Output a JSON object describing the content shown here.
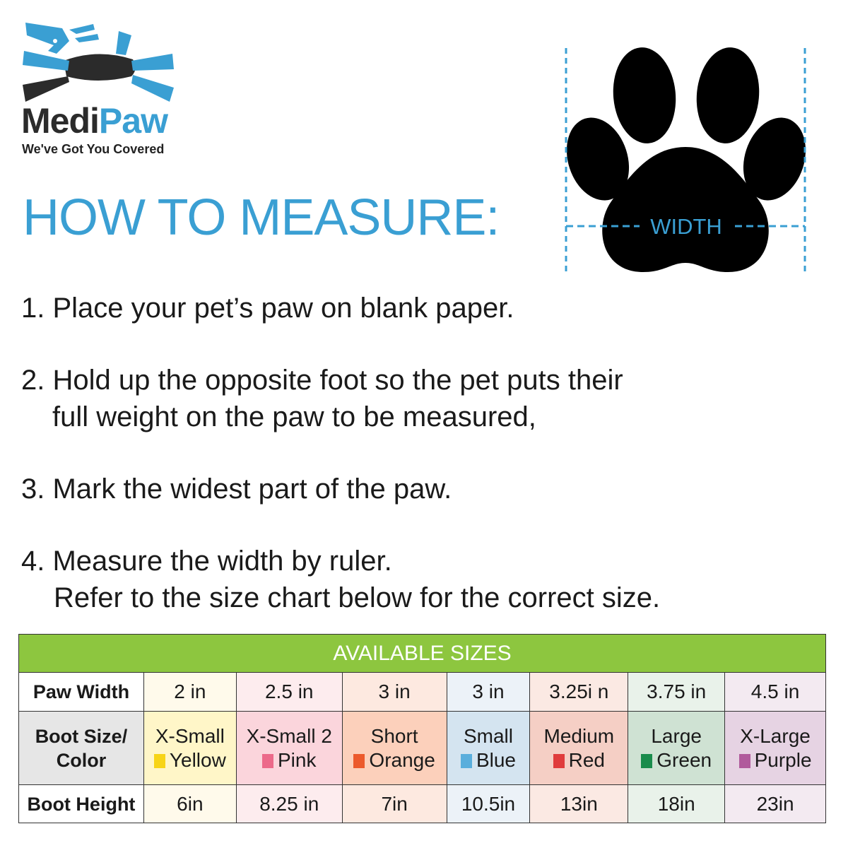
{
  "brand": {
    "name_part1": "Medi",
    "name_part2": "Paw",
    "tagline": "We've Got You Covered",
    "primary_color": "#3a9fd3",
    "dark_color": "#2b2b2b"
  },
  "title": "HOW TO MEASURE:",
  "diagram": {
    "width_label": "WIDTH",
    "icon": "paw-print-icon"
  },
  "steps": [
    {
      "line1": "1. Place your pet’s paw on blank paper.",
      "line2": ""
    },
    {
      "line1": "2. Hold up the opposite foot so the pet puts their",
      "line2": "full weight on the paw to be measured,"
    },
    {
      "line1": "3. Mark the widest part of the paw.",
      "line2": ""
    },
    {
      "line1": "4. Measure the width by ruler.",
      "line2": "Refer to the size chart below for the correct size."
    }
  ],
  "size_table": {
    "header": "AVAILABLE SIZES",
    "header_color": "#8dc63f",
    "row_labels": {
      "paw_width": "Paw Width",
      "boot_size": "Boot Size/ Color",
      "boot_height": "Boot Height"
    },
    "columns": [
      {
        "paw_width": "2 in",
        "size": "X-Small",
        "color": "Yellow",
        "swatch": "#f7d417",
        "tint": "#fff6c8",
        "light": "#fffaeb",
        "boot_height": "6in"
      },
      {
        "paw_width": "2.5 in",
        "size": "X-Small 2",
        "color": "Pink",
        "swatch": "#ec6a8a",
        "tint": "#fbd5dc",
        "light": "#fdecee",
        "boot_height": "8.25 in"
      },
      {
        "paw_width": "3 in",
        "size": "Short",
        "color": "Orange",
        "swatch": "#ec5a2c",
        "tint": "#fcd0bb",
        "light": "#fde9e0",
        "boot_height": "7in"
      },
      {
        "paw_width": "3 in",
        "size": "Small",
        "color": "Blue",
        "swatch": "#5aaedc",
        "tint": "#d4e4f0",
        "light": "#ecf2f8",
        "boot_height": "10.5in"
      },
      {
        "paw_width": "3.25i n",
        "size": "Medium",
        "color": "Red",
        "swatch": "#e03c3c",
        "tint": "#f5cfc5",
        "light": "#fbe9e3",
        "boot_height": "13in"
      },
      {
        "paw_width": "3.75 in",
        "size": "Large",
        "color": "Green",
        "swatch": "#1a8c4c",
        "tint": "#cfe2d3",
        "light": "#e9f2ea",
        "boot_height": "18in"
      },
      {
        "paw_width": "4.5 in",
        "size": "X-Large",
        "color": "Purple",
        "swatch": "#b05a9c",
        "tint": "#e6d3e3",
        "light": "#f3eaf1",
        "boot_height": "23in"
      }
    ]
  }
}
